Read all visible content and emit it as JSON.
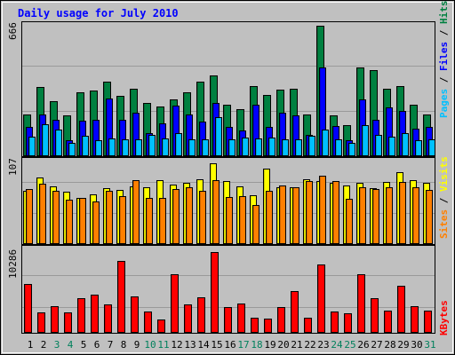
{
  "chart_data": [
    {
      "type": "bar",
      "title": "Daily usage for July 2010",
      "panel": "pages-files-hits",
      "ylabel_parts": [
        "Pages",
        "Files",
        "Hits"
      ],
      "y_tick_label": "666",
      "ylim": [
        0,
        666
      ],
      "categories": [
        "1",
        "2",
        "3",
        "4",
        "5",
        "6",
        "7",
        "8",
        "9",
        "10",
        "11",
        "12",
        "13",
        "14",
        "15",
        "16",
        "17",
        "18",
        "19",
        "20",
        "21",
        "22",
        "23",
        "24",
        "25",
        "26",
        "27",
        "28",
        "29",
        "30",
        "31"
      ],
      "series": [
        {
          "name": "Hits",
          "color": "#008040",
          "values": [
            213,
            355,
            280,
            208,
            326,
            335,
            380,
            308,
            345,
            271,
            255,
            288,
            328,
            380,
            414,
            265,
            238,
            358,
            312,
            338,
            346,
            213,
            666,
            208,
            160,
            455,
            441,
            346,
            358,
            262,
            213
          ]
        },
        {
          "name": "Files",
          "color": "#0000ff",
          "values": [
            150,
            215,
            187,
            80,
            180,
            187,
            295,
            187,
            220,
            118,
            166,
            258,
            215,
            176,
            270,
            150,
            130,
            263,
            150,
            220,
            210,
            108,
            455,
            155,
            80,
            290,
            186,
            250,
            232,
            142,
            148
          ]
        },
        {
          "name": "Pages",
          "color": "#00c0ff",
          "values": [
            101,
            163,
            137,
            67,
            102,
            83,
            89,
            85,
            88,
            109,
            91,
            119,
            84,
            87,
            201,
            84,
            93,
            91,
            95,
            88,
            88,
            104,
            134,
            85,
            67,
            157,
            108,
            101,
            118,
            83,
            84
          ]
        }
      ]
    },
    {
      "type": "bar",
      "panel": "sites-visits",
      "ylabel_parts": [
        "Sites",
        "Visits"
      ],
      "y_tick_label": "107",
      "ylim": [
        0,
        107
      ],
      "categories": [
        "1",
        "2",
        "3",
        "4",
        "5",
        "6",
        "7",
        "8",
        "9",
        "10",
        "11",
        "12",
        "13",
        "14",
        "15",
        "16",
        "17",
        "18",
        "19",
        "20",
        "21",
        "22",
        "23",
        "24",
        "25",
        "26",
        "27",
        "28",
        "29",
        "30",
        "31"
      ],
      "series": [
        {
          "name": "Visits",
          "color": "#ffff00",
          "values": [
            70,
            87,
            76,
            69,
            61,
            65,
            73,
            71,
            76,
            75,
            84,
            78,
            80,
            85,
            106,
            83,
            76,
            64,
            99,
            75,
            75,
            85,
            82,
            80,
            77,
            80,
            73,
            81,
            94,
            84,
            80
          ]
        },
        {
          "name": "Sites",
          "color": "#ff8000",
          "values": [
            72,
            79,
            70,
            58,
            60,
            56,
            70,
            63,
            84,
            61,
            60,
            72,
            75,
            70,
            84,
            62,
            63,
            51,
            70,
            77,
            74,
            82,
            90,
            83,
            59,
            74,
            72,
            74,
            81,
            75,
            71
          ]
        }
      ]
    },
    {
      "type": "bar",
      "panel": "kbytes",
      "ylabel_parts": [
        "KBytes"
      ],
      "y_tick_label": "10286",
      "ylim": [
        0,
        10286
      ],
      "categories": [
        "1",
        "2",
        "3",
        "4",
        "5",
        "6",
        "7",
        "8",
        "9",
        "10",
        "11",
        "12",
        "13",
        "14",
        "15",
        "16",
        "17",
        "18",
        "19",
        "20",
        "21",
        "22",
        "23",
        "24",
        "25",
        "26",
        "27",
        "28",
        "29",
        "30",
        "31"
      ],
      "series": [
        {
          "name": "KBytes",
          "color": "#ff0000",
          "values": [
            6214,
            2586,
            3439,
            2601,
            4369,
            4816,
            3662,
            9128,
            4650,
            2730,
            1726,
            7510,
            3567,
            4552,
            10286,
            3301,
            3681,
            1902,
            1855,
            3227,
            5352,
            1883,
            8670,
            2684,
            2444,
            7405,
            4443,
            2838,
            5966,
            3416,
            2828
          ]
        }
      ]
    }
  ],
  "x_axis": {
    "day_labels": [
      "1",
      "2",
      "3",
      "4",
      "5",
      "6",
      "7",
      "8",
      "9",
      "10",
      "11",
      "12",
      "13",
      "14",
      "15",
      "16",
      "17",
      "18",
      "19",
      "20",
      "21",
      "22",
      "23",
      "24",
      "25",
      "26",
      "27",
      "28",
      "29",
      "30",
      "31"
    ],
    "weekend_days": [
      3,
      4,
      10,
      11,
      17,
      18,
      24,
      25,
      31
    ],
    "weekday_color": "#000000",
    "weekend_color": "#00805c"
  },
  "colors": {
    "background": "#c0c0c0",
    "title": "#0000ff",
    "separator": "#ffffff",
    "slash": "#000000"
  }
}
